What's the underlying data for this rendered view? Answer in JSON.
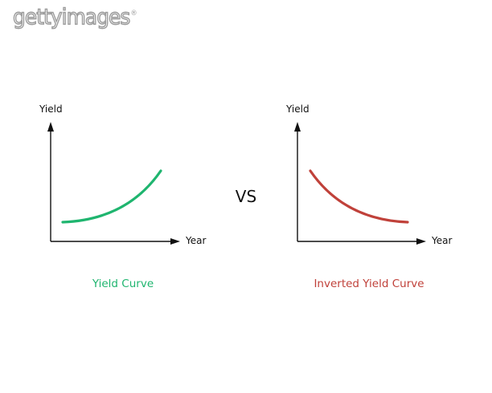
{
  "watermark": {
    "text": "gettyimages",
    "mark": "®"
  },
  "comparison_word": "VS",
  "colors": {
    "normal": "#1fb56f",
    "inverted": "#c0413a",
    "axis": "#111111"
  },
  "left_panel": {
    "y_axis_label": "Yield",
    "x_axis_label": "Year",
    "caption": "Yield Curve",
    "shape": "rising convex curve"
  },
  "right_panel": {
    "y_axis_label": "Yield",
    "x_axis_label": "Year",
    "caption": "Inverted Yield Curve",
    "shape": "falling concave curve"
  }
}
